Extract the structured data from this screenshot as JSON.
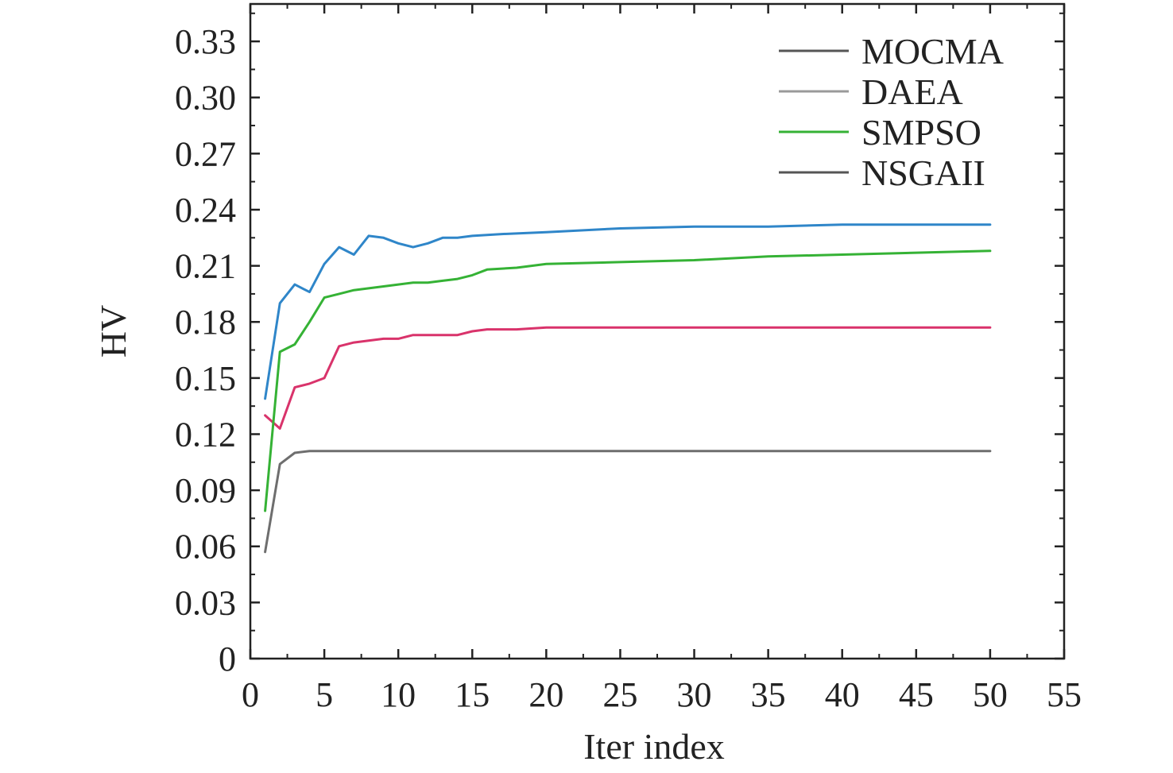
{
  "chart_data": {
    "type": "line",
    "title": "",
    "xlabel": "Iter index",
    "ylabel": "HV",
    "xlim": [
      0,
      55
    ],
    "ylim": [
      0,
      0.35
    ],
    "xticks": [
      0,
      5,
      10,
      15,
      20,
      25,
      30,
      35,
      40,
      45,
      50,
      55
    ],
    "xtick_labels": [
      "0",
      "5",
      "10",
      "15",
      "20",
      "25",
      "30",
      "35",
      "40",
      "45",
      "50",
      "55"
    ],
    "yticks": [
      0,
      0.03,
      0.06,
      0.09,
      0.12,
      0.15,
      0.18,
      0.21,
      0.24,
      0.27,
      0.3,
      0.33
    ],
    "ytick_labels": [
      "0",
      "0.03",
      "0.06",
      "0.09",
      "0.12",
      "0.15",
      "0.18",
      "0.21",
      "0.24",
      "0.27",
      "0.30",
      "0.33"
    ],
    "grid": false,
    "legend_position": "top-right",
    "series": [
      {
        "name": "MOCMA",
        "color": "#2f86c9",
        "legend_color": "#555555",
        "points": [
          [
            1,
            0.139
          ],
          [
            2,
            0.19
          ],
          [
            3,
            0.2
          ],
          [
            4,
            0.196
          ],
          [
            5,
            0.211
          ],
          [
            6,
            0.22
          ],
          [
            7,
            0.216
          ],
          [
            8,
            0.226
          ],
          [
            9,
            0.225
          ],
          [
            10,
            0.222
          ],
          [
            11,
            0.22
          ],
          [
            12,
            0.222
          ],
          [
            13,
            0.225
          ],
          [
            14,
            0.225
          ],
          [
            15,
            0.226
          ],
          [
            17,
            0.227
          ],
          [
            20,
            0.228
          ],
          [
            25,
            0.23
          ],
          [
            30,
            0.231
          ],
          [
            35,
            0.231
          ],
          [
            40,
            0.232
          ],
          [
            45,
            0.232
          ],
          [
            50,
            0.232
          ]
        ]
      },
      {
        "name": "DAEA",
        "color": "#d9336b",
        "legend_color": "#9a9a9a",
        "points": [
          [
            1,
            0.13
          ],
          [
            2,
            0.123
          ],
          [
            3,
            0.145
          ],
          [
            4,
            0.147
          ],
          [
            5,
            0.15
          ],
          [
            6,
            0.167
          ],
          [
            7,
            0.169
          ],
          [
            8,
            0.17
          ],
          [
            9,
            0.171
          ],
          [
            10,
            0.171
          ],
          [
            11,
            0.173
          ],
          [
            12,
            0.173
          ],
          [
            13,
            0.173
          ],
          [
            14,
            0.173
          ],
          [
            15,
            0.175
          ],
          [
            16,
            0.176
          ],
          [
            18,
            0.176
          ],
          [
            20,
            0.177
          ],
          [
            25,
            0.177
          ],
          [
            30,
            0.177
          ],
          [
            35,
            0.177
          ],
          [
            40,
            0.177
          ],
          [
            45,
            0.177
          ],
          [
            50,
            0.177
          ]
        ]
      },
      {
        "name": "SMPSO",
        "color": "#35b235",
        "legend_color": "#35b235",
        "points": [
          [
            1,
            0.079
          ],
          [
            2,
            0.164
          ],
          [
            3,
            0.168
          ],
          [
            4,
            0.18
          ],
          [
            5,
            0.193
          ],
          [
            6,
            0.195
          ],
          [
            7,
            0.197
          ],
          [
            8,
            0.198
          ],
          [
            9,
            0.199
          ],
          [
            10,
            0.2
          ],
          [
            11,
            0.201
          ],
          [
            12,
            0.201
          ],
          [
            13,
            0.202
          ],
          [
            14,
            0.203
          ],
          [
            15,
            0.205
          ],
          [
            16,
            0.208
          ],
          [
            18,
            0.209
          ],
          [
            20,
            0.211
          ],
          [
            25,
            0.212
          ],
          [
            30,
            0.213
          ],
          [
            35,
            0.215
          ],
          [
            40,
            0.216
          ],
          [
            45,
            0.217
          ],
          [
            50,
            0.218
          ]
        ]
      },
      {
        "name": "NSGAII",
        "color": "#6e6e6e",
        "legend_color": "#555555",
        "points": [
          [
            1,
            0.057
          ],
          [
            2,
            0.104
          ],
          [
            3,
            0.11
          ],
          [
            4,
            0.111
          ],
          [
            5,
            0.111
          ],
          [
            10,
            0.111
          ],
          [
            15,
            0.111
          ],
          [
            20,
            0.111
          ],
          [
            25,
            0.111
          ],
          [
            30,
            0.111
          ],
          [
            35,
            0.111
          ],
          [
            40,
            0.111
          ],
          [
            45,
            0.111
          ],
          [
            50,
            0.111
          ]
        ]
      }
    ]
  }
}
